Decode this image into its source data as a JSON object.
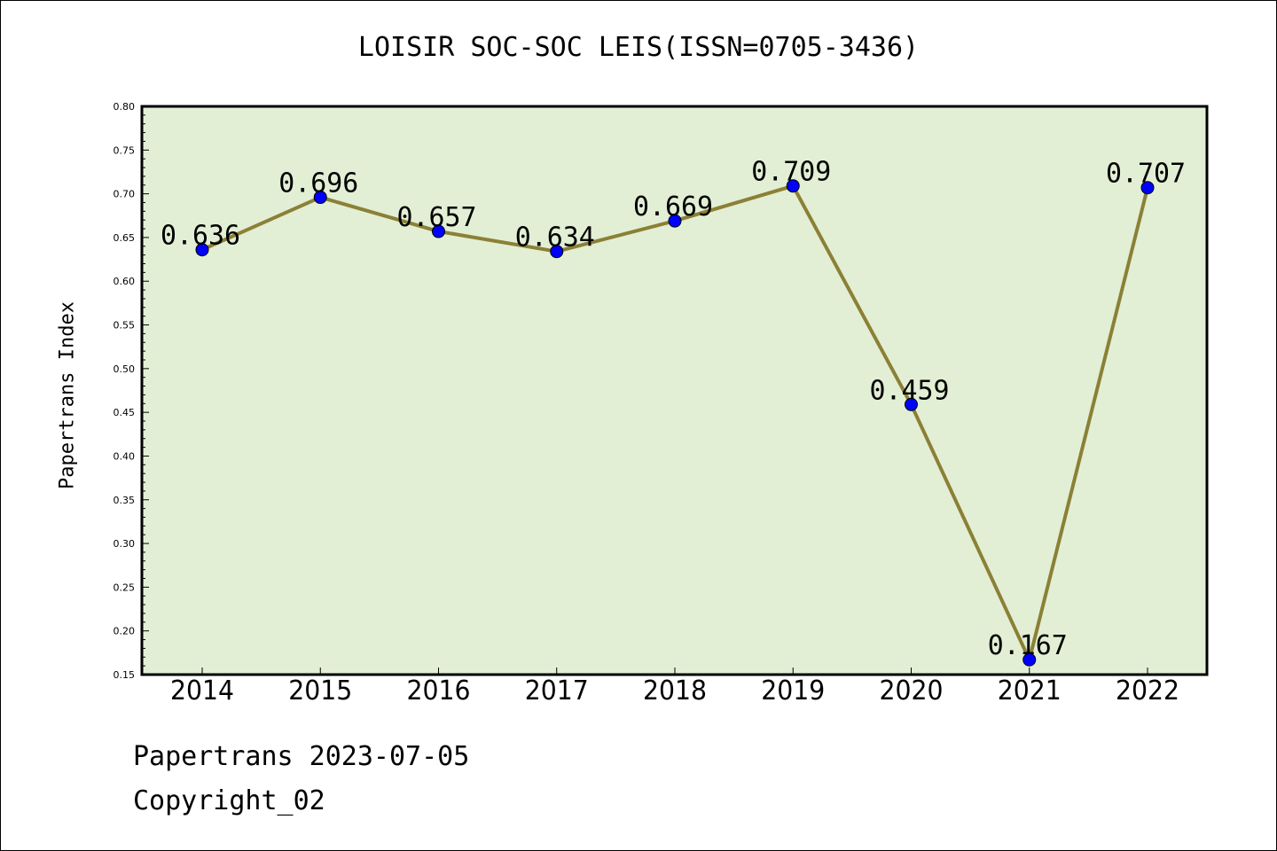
{
  "chart_data": {
    "type": "line",
    "title": "LOISIR SOC-SOC LEIS(ISSN=0705-3436)",
    "xlabel": "",
    "ylabel": "Papertrans Index",
    "categories": [
      "2014",
      "2015",
      "2016",
      "2017",
      "2018",
      "2019",
      "2020",
      "2021",
      "2022"
    ],
    "series": [
      {
        "values": [
          0.636,
          0.696,
          0.657,
          0.634,
          0.669,
          0.709,
          0.459,
          0.167,
          0.707
        ],
        "data_labels": [
          "0.636",
          "0.696",
          "0.657",
          "0.634",
          "0.669",
          "0.709",
          "0.459",
          "0.167",
          "0.707"
        ]
      }
    ],
    "ylim": [
      0.15,
      0.8
    ],
    "yticks": [
      "0.15",
      "0.20",
      "0.25",
      "0.30",
      "0.35",
      "0.40",
      "0.45",
      "0.50",
      "0.55",
      "0.60",
      "0.65",
      "0.70",
      "0.75",
      "0.80"
    ],
    "grid": false,
    "legend": "none",
    "colors": {
      "plot_background": "#e2efd5",
      "line": "#8b8036",
      "marker": "#0000ff"
    }
  },
  "footer": {
    "date_line": "Papertrans 2023-07-05",
    "copyright": "Copyright_02"
  }
}
